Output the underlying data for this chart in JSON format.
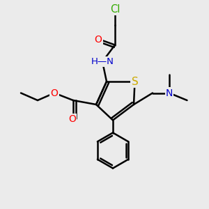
{
  "bg_color": "#ebebeb",
  "bond_color": "#000000",
  "bond_width": 1.8,
  "atom_colors": {
    "N": "#0000cc",
    "O": "#ff0000",
    "S": "#ccaa00",
    "Cl": "#33aa00"
  },
  "font_size": 10,
  "figsize": [
    3.0,
    3.0
  ],
  "dpi": 100
}
